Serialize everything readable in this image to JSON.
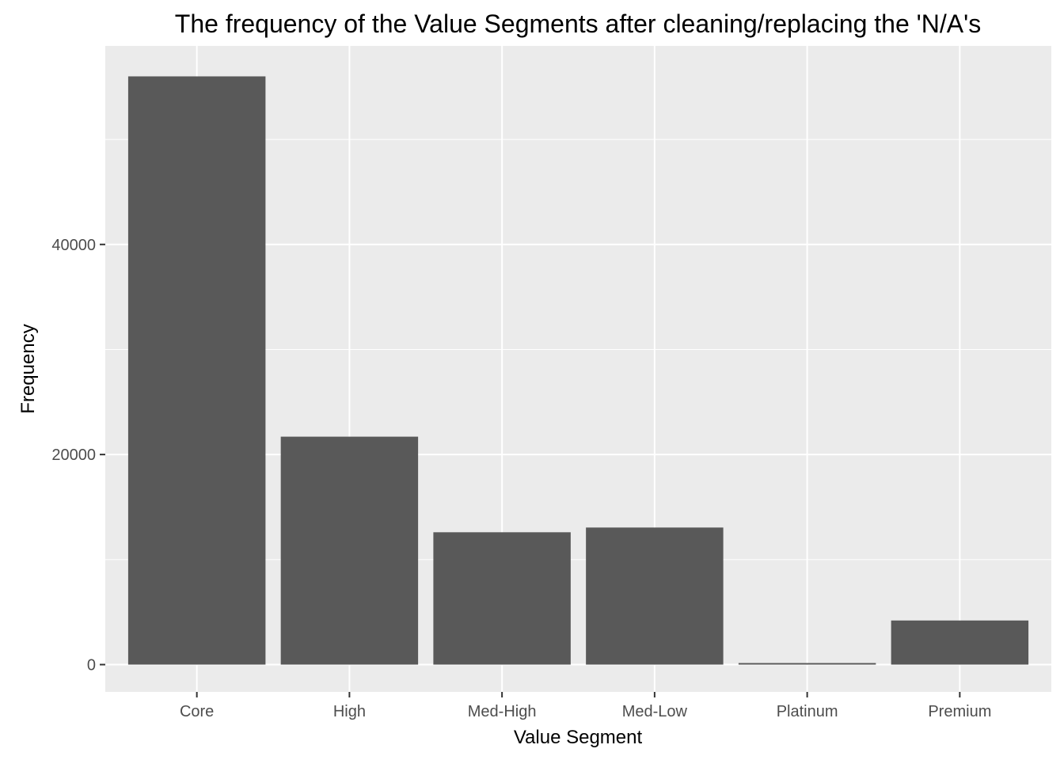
{
  "chart_data": {
    "type": "bar",
    "title": "The frequency of the Value Segments after cleaning/replacing the 'N/A's",
    "xlabel": "Value Segment",
    "ylabel": "Frequency",
    "categories": [
      "Core",
      "High",
      "Med-High",
      "Med-Low",
      "Platinum",
      "Premium"
    ],
    "values": [
      56000,
      21700,
      12600,
      13050,
      150,
      4200
    ],
    "ylim": [
      -2600,
      58900
    ],
    "yticks": [
      0,
      20000,
      40000
    ],
    "ytick_labels": [
      "0",
      "20000",
      "40000"
    ],
    "grid": true,
    "legend": "none",
    "colors": {
      "bar": "#595959",
      "panel": "#ebebeb",
      "grid": "#ffffff"
    }
  }
}
